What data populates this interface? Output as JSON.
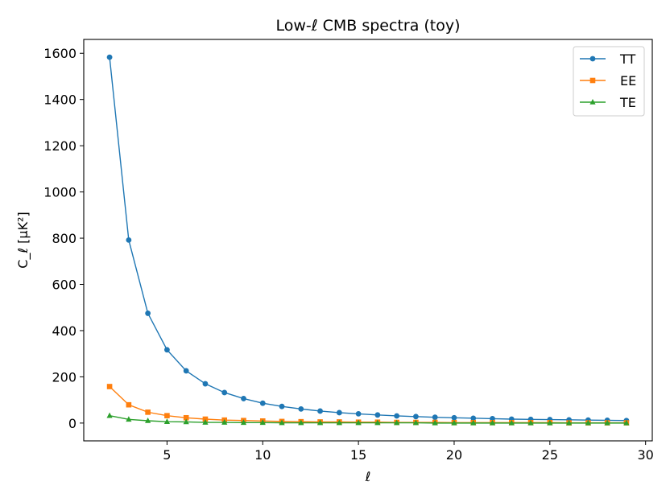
{
  "chart_data": {
    "type": "line",
    "title": "Low-ℓ CMB spectra (toy)",
    "xlabel": "ℓ",
    "ylabel": "C_ℓ [μK²]",
    "xlim": [
      0.65,
      30.35
    ],
    "ylim": [
      -77,
      1660
    ],
    "xticks": [
      5,
      10,
      15,
      20,
      25,
      30
    ],
    "xtick_labels": [
      "5",
      "10",
      "15",
      "20",
      "25",
      "30"
    ],
    "yticks": [
      0,
      200,
      400,
      600,
      800,
      1000,
      1200,
      1400,
      1600
    ],
    "ytick_labels": [
      "0",
      "200",
      "400",
      "600",
      "800",
      "1000",
      "1200",
      "1400",
      "1600"
    ],
    "grid": false,
    "legend_position": "top-right",
    "x": [
      2,
      3,
      4,
      5,
      6,
      7,
      8,
      9,
      10,
      11,
      12,
      13,
      14,
      15,
      16,
      17,
      18,
      19,
      20,
      21,
      22,
      23,
      24,
      25,
      26,
      27,
      28,
      29
    ],
    "series": [
      {
        "name": "TT",
        "color": "#1f77b4",
        "marker": "circle",
        "values": [
          1583,
          792,
          475,
          317,
          226,
          170,
          132,
          106,
          86,
          72,
          61,
          52,
          45,
          40,
          35,
          31,
          28,
          25,
          23,
          21,
          19,
          17,
          16,
          15,
          14,
          13,
          12,
          11
        ]
      },
      {
        "name": "EE",
        "color": "#ff7f0e",
        "marker": "square",
        "values": [
          158,
          79,
          47,
          32,
          23,
          17,
          13,
          11,
          9,
          7,
          6,
          5,
          5,
          4,
          4,
          3,
          3,
          3,
          2,
          2,
          2,
          2,
          2,
          2,
          1,
          1,
          1,
          1
        ]
      },
      {
        "name": "TE",
        "color": "#2ca02c",
        "marker": "triangle",
        "values": [
          32,
          16,
          10,
          6,
          5,
          3,
          3,
          2,
          2,
          1,
          1,
          1,
          1,
          1,
          1,
          1,
          1,
          0,
          0,
          0,
          0,
          0,
          0,
          0,
          0,
          0,
          0,
          0
        ]
      }
    ]
  }
}
